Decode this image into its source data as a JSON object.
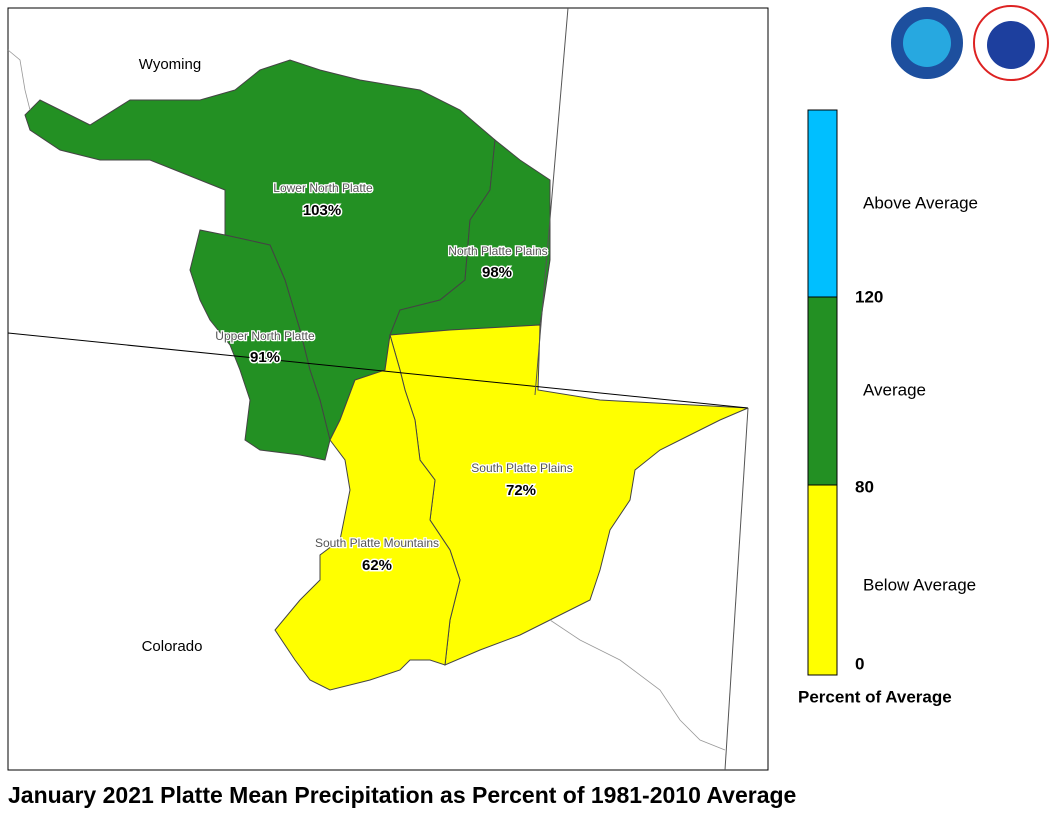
{
  "map": {
    "title": "January 2021 Platte Mean Precipitation as Percent of 1981-2010 Average",
    "state_labels": [
      "Wyoming",
      "Colorado"
    ],
    "basins": [
      {
        "name": "Lower North Platte",
        "label": "103%",
        "color": "#239023"
      },
      {
        "name": "North Platte Plains",
        "label": "98%",
        "color": "#239023"
      },
      {
        "name": "Upper North Platte",
        "label": "91%",
        "color": "#239023"
      },
      {
        "name": "South Platte Plains",
        "label": "72%",
        "color": "#ffff00"
      },
      {
        "name": "South Platte Mountains",
        "label": "62%",
        "color": "#ffff00"
      }
    ],
    "legend": {
      "title": "Percent of Average",
      "classes": [
        {
          "name": "Above Average",
          "color": "#00bfff"
        },
        {
          "name": "Average",
          "color": "#239023"
        },
        {
          "name": "Below Average",
          "color": "#ffff00"
        }
      ],
      "breaks": [
        120,
        80,
        0
      ]
    }
  }
}
